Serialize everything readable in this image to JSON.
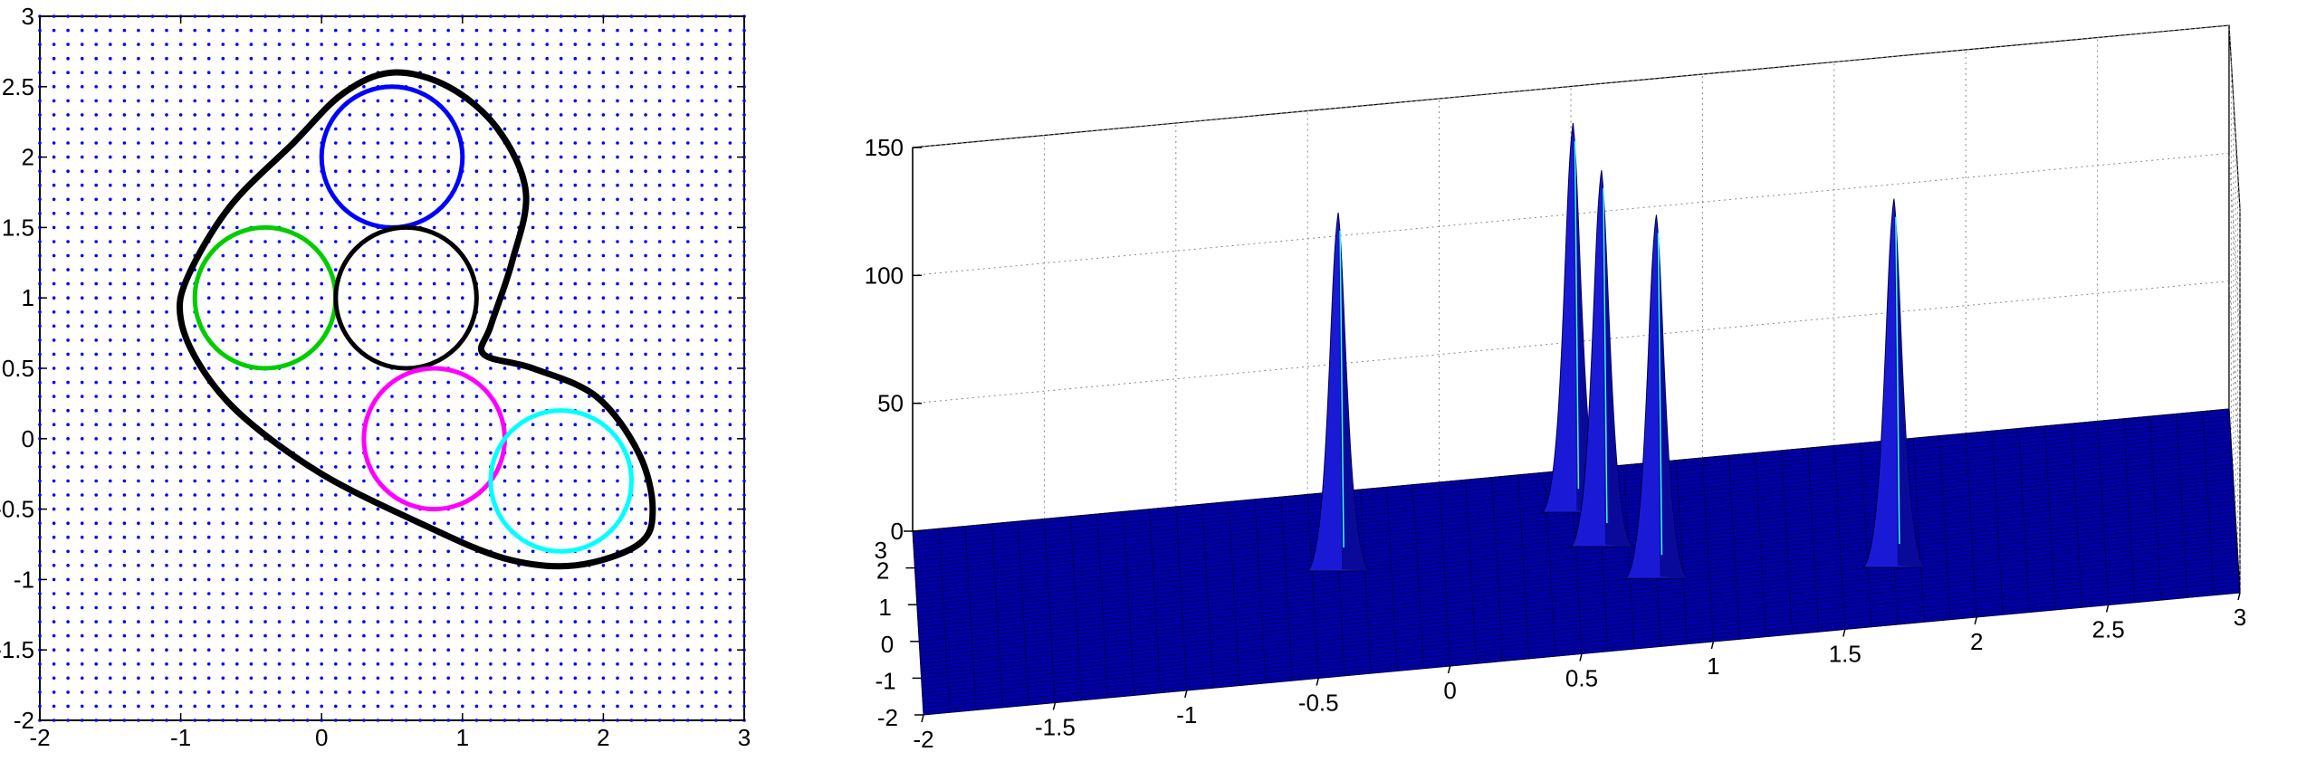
{
  "chart_data": [
    {
      "type": "scatter",
      "subtype": "2d-domain-with-circles",
      "title": "",
      "xlabel": "",
      "ylabel": "",
      "xlim": [
        -2,
        3
      ],
      "ylim": [
        -2,
        3
      ],
      "x_ticks": [
        "-2",
        "-1",
        "0",
        "1",
        "2",
        "3"
      ],
      "y_ticks": [
        "-2",
        "-1.5",
        "-1",
        "-0.5",
        "0",
        "0.5",
        "1",
        "1.5",
        "2",
        "2.5",
        "3"
      ],
      "grid_points": {
        "start": -2,
        "end": 3,
        "step": 0.1,
        "color": "#0000ff"
      },
      "boundary_curve": {
        "color": "#000000",
        "points": [
          [
            0.5,
            2.6
          ],
          [
            0.9,
            2.5
          ],
          [
            1.25,
            2.2
          ],
          [
            1.45,
            1.75
          ],
          [
            1.35,
            1.25
          ],
          [
            1.2,
            0.8
          ],
          [
            1.15,
            0.6
          ],
          [
            1.5,
            0.5
          ],
          [
            1.95,
            0.3
          ],
          [
            2.25,
            -0.1
          ],
          [
            2.35,
            -0.5
          ],
          [
            2.25,
            -0.75
          ],
          [
            1.8,
            -0.9
          ],
          [
            1.3,
            -0.85
          ],
          [
            0.7,
            -0.6
          ],
          [
            0.0,
            -0.25
          ],
          [
            -0.55,
            0.15
          ],
          [
            -0.85,
            0.5
          ],
          [
            -1.0,
            0.85
          ],
          [
            -0.95,
            1.15
          ],
          [
            -0.65,
            1.65
          ],
          [
            -0.2,
            2.1
          ],
          [
            0.15,
            2.45
          ],
          [
            0.5,
            2.6
          ]
        ]
      },
      "circles": [
        {
          "name": "blue",
          "color": "#0000ff",
          "cx": 0.5,
          "cy": 2.0,
          "r": 0.5
        },
        {
          "name": "green",
          "color": "#00cc00",
          "cx": -0.4,
          "cy": 1.0,
          "r": 0.5
        },
        {
          "name": "black",
          "color": "#000000",
          "cx": 0.6,
          "cy": 1.0,
          "r": 0.5
        },
        {
          "name": "magenta",
          "color": "#ff00ff",
          "cx": 0.8,
          "cy": 0.0,
          "r": 0.5
        },
        {
          "name": "cyan",
          "color": "#00ffff",
          "cx": 1.7,
          "cy": -0.3,
          "r": 0.5
        }
      ]
    },
    {
      "type": "surface",
      "title": "",
      "xlabel": "",
      "ylabel": "",
      "zlabel": "",
      "xlim": [
        -2,
        3
      ],
      "ylim": [
        -2,
        3
      ],
      "zlim": [
        0,
        150
      ],
      "x_ticks": [
        "-2",
        "-1.5",
        "-1",
        "-0.5",
        "0",
        "0.5",
        "1",
        "1.5",
        "2",
        "2.5",
        "3"
      ],
      "y_ticks": [
        "-2",
        "-1",
        "0",
        "1",
        "2",
        "3"
      ],
      "z_ticks": [
        "0",
        "50",
        "100",
        "150"
      ],
      "surface_color": "#0000aa",
      "peaks": [
        {
          "x": 0.5,
          "y": 2.0,
          "z": 150
        },
        {
          "x": -0.4,
          "y": 1.0,
          "z": 138
        },
        {
          "x": 0.6,
          "y": 1.0,
          "z": 145
        },
        {
          "x": 0.8,
          "y": 0.0,
          "z": 140
        },
        {
          "x": 1.7,
          "y": -0.3,
          "z": 142
        }
      ]
    }
  ]
}
